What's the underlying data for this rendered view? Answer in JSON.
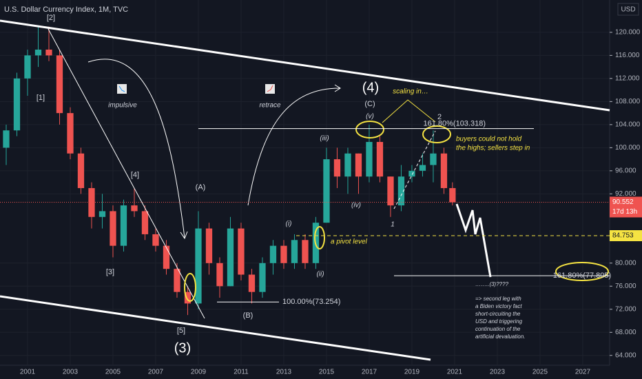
{
  "chart_data": {
    "type": "candlestick",
    "title": "U.S. Dollar Currency Index, 1M, TVC",
    "currency": "USD",
    "x": [
      2000.0,
      2000.5,
      2001.0,
      2001.5,
      2002.0,
      2002.5,
      2003.0,
      2003.5,
      2004.0,
      2004.5,
      2005.0,
      2005.5,
      2006.0,
      2006.5,
      2007.0,
      2007.5,
      2008.0,
      2008.5,
      2009.0,
      2009.5,
      2010.0,
      2010.5,
      2011.0,
      2011.5,
      2012.0,
      2012.5,
      2013.0,
      2013.5,
      2014.0,
      2014.5,
      2015.0,
      2015.5,
      2016.0,
      2016.5,
      2017.0,
      2017.5,
      2018.0,
      2018.5,
      2019.0,
      2019.5,
      2020.0,
      2020.5,
      2020.9
    ],
    "open": [
      100,
      103,
      112,
      116,
      117,
      116,
      106,
      99,
      93,
      88,
      89,
      83,
      90,
      89,
      85,
      83,
      79,
      75,
      73,
      86,
      80,
      76,
      86,
      78,
      75,
      80,
      83,
      80,
      84,
      80,
      87,
      98,
      95,
      99,
      95,
      101,
      95,
      90,
      95,
      96,
      97,
      99,
      93
    ],
    "high": [
      104,
      113,
      117,
      121,
      121,
      117,
      107,
      100,
      94,
      92,
      90,
      91,
      93,
      90,
      86,
      84,
      80,
      76,
      89,
      87,
      81,
      88,
      87,
      79,
      81,
      84,
      84,
      85,
      85,
      88,
      100,
      100,
      100,
      99,
      104,
      102,
      95,
      97,
      97,
      99,
      103,
      100,
      94
    ],
    "low": [
      97,
      102,
      109,
      114,
      115,
      104,
      98,
      92,
      86,
      86,
      81,
      82,
      88,
      84,
      82,
      78,
      74,
      71,
      72,
      78,
      74,
      76,
      77,
      73,
      74,
      78,
      79,
      79,
      79,
      79,
      87,
      93,
      92,
      92,
      94,
      94,
      88,
      89,
      94,
      95,
      94,
      92,
      90
    ],
    "close": [
      103,
      112,
      116,
      117,
      116,
      106,
      99,
      93,
      88,
      89,
      83,
      90,
      89,
      85,
      83,
      79,
      75,
      73,
      86,
      80,
      76,
      86,
      78,
      75,
      80,
      83,
      80,
      84,
      80,
      87,
      98,
      95,
      99,
      95,
      101,
      95,
      90,
      95,
      96,
      97,
      99,
      93,
      90.552
    ],
    "xlim": [
      1999.71,
      2028.26
    ],
    "xticks": [
      2001,
      2003,
      2005,
      2007,
      2009,
      2011,
      2013,
      2015,
      2017,
      2019,
      2021,
      2023,
      2025,
      2027
    ],
    "ylim": [
      62.3,
      125.6
    ],
    "yticks": [
      {
        "value": 64,
        "label": "64.000"
      },
      {
        "value": 68,
        "label": "68.000"
      },
      {
        "value": 72,
        "label": "72.000"
      },
      {
        "value": 76,
        "label": "76.000"
      },
      {
        "value": 80,
        "label": "80.000"
      },
      {
        "value": 92,
        "label": "92.000"
      },
      {
        "value": 96,
        "label": "96.000"
      },
      {
        "value": 100,
        "label": "100.000"
      },
      {
        "value": 104,
        "label": "104.000"
      },
      {
        "value": 108,
        "label": "108.000"
      },
      {
        "value": 112,
        "label": "112.000"
      },
      {
        "value": 116,
        "label": "116.000"
      },
      {
        "value": 120,
        "label": "120.000"
      }
    ],
    "up_color": "#26a69a",
    "down_color": "#ef5350",
    "last_price": 90.552,
    "countdown": "17d 13h",
    "pivot_level": 84.753,
    "levels": [
      {
        "value": 103.318,
        "label": "161.80%(103.318)"
      },
      {
        "value": 73.254,
        "label": "100.00%(73.254)"
      },
      {
        "value": 77.805,
        "label": "161.80%(77.805)"
      }
    ],
    "annotations": [
      "[2]",
      "[1]",
      "[4]",
      "[3]",
      "[5]",
      "(3)",
      "(A)",
      "(B)",
      "(i)",
      "(ii)",
      "(iii)",
      "(iv)",
      "(v)",
      "(C)",
      "(4)",
      "1",
      "2",
      "scaling in…",
      "impulsive",
      "retrace",
      "buyers could not hold",
      "the highs; sellers step in",
      "a pivot level",
      "……..(3)????",
      "=> second leg with",
      "a Biden victory fact",
      "short-circuiting the",
      "USD and triggering",
      "continuation of the",
      "artificial devaluation."
    ]
  }
}
